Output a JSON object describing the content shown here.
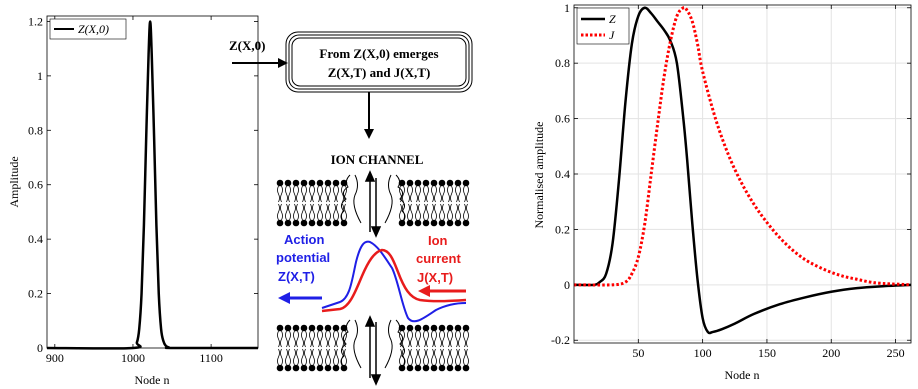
{
  "chart_data": [
    {
      "type": "line",
      "id": "left",
      "xlabel": "Node n",
      "ylabel": "Amplitude",
      "xlim": [
        890,
        1160
      ],
      "ylim": [
        0,
        1.22
      ],
      "xticks": [
        "900",
        "1000",
        "1100"
      ],
      "xtick_values": [
        900,
        1000,
        1100
      ],
      "yticks": [
        "0",
        "0.2",
        "0.4",
        "0.6",
        "0.8",
        "1",
        "1.2"
      ],
      "ytick_values": [
        0,
        0.2,
        0.4,
        0.6,
        0.8,
        1.0,
        1.2
      ],
      "grid": false,
      "legend_position": "top-left",
      "series": [
        {
          "name": "Z(X,0)",
          "color": "#000000",
          "style": "solid",
          "x": [
            890,
            1000,
            1005,
            1008,
            1011,
            1014,
            1017,
            1020,
            1022,
            1024,
            1027,
            1030,
            1033,
            1036,
            1039,
            1042,
            1046,
            1052,
            1160
          ],
          "y": [
            0,
            0,
            0.02,
            0.07,
            0.2,
            0.45,
            0.78,
            1.08,
            1.2,
            1.08,
            0.78,
            0.45,
            0.2,
            0.07,
            0.025,
            0.008,
            0.002,
            0,
            0
          ]
        }
      ]
    },
    {
      "type": "line",
      "id": "right",
      "xlabel": "Node n",
      "ylabel": "Normalised amplitude",
      "xlim": [
        0,
        262
      ],
      "ylim": [
        -0.21,
        1.01
      ],
      "xticks": [
        "50",
        "100",
        "150",
        "200",
        "250"
      ],
      "xtick_values": [
        50,
        100,
        150,
        200,
        250
      ],
      "yticks": [
        "-0.2",
        "0",
        "0.2",
        "0.4",
        "0.6",
        "0.8",
        "1"
      ],
      "ytick_values": [
        -0.2,
        0,
        0.2,
        0.4,
        0.6,
        0.8,
        1.0
      ],
      "grid": true,
      "legend_position": "top-left",
      "series": [
        {
          "name": "Z",
          "color": "#000000",
          "style": "solid",
          "x": [
            0,
            15,
            20,
            25,
            30,
            35,
            40,
            45,
            50,
            55,
            60,
            65,
            70,
            75,
            80,
            85,
            88,
            92,
            96,
            100,
            104,
            108,
            115,
            125,
            140,
            160,
            180,
            200,
            220,
            240,
            262
          ],
          "y": [
            0,
            0,
            0.01,
            0.04,
            0.15,
            0.38,
            0.66,
            0.87,
            0.97,
            1.0,
            0.98,
            0.95,
            0.92,
            0.88,
            0.8,
            0.6,
            0.45,
            0.22,
            0.02,
            -0.12,
            -0.17,
            -0.17,
            -0.16,
            -0.14,
            -0.105,
            -0.07,
            -0.045,
            -0.025,
            -0.012,
            -0.005,
            0
          ]
        },
        {
          "name": "J",
          "color": "#ff0000",
          "style": "dotted",
          "x": [
            0,
            30,
            40,
            45,
            50,
            55,
            60,
            65,
            70,
            75,
            80,
            85,
            88,
            92,
            96,
            100,
            110,
            120,
            130,
            140,
            150,
            160,
            170,
            180,
            190,
            200,
            210,
            220,
            230,
            240,
            262
          ],
          "y": [
            0,
            0,
            0.01,
            0.04,
            0.1,
            0.22,
            0.4,
            0.58,
            0.75,
            0.88,
            0.97,
            1.0,
            0.99,
            0.95,
            0.87,
            0.77,
            0.6,
            0.47,
            0.37,
            0.29,
            0.225,
            0.17,
            0.125,
            0.09,
            0.065,
            0.045,
            0.03,
            0.02,
            0.01,
            0.005,
            0
          ]
        }
      ]
    }
  ],
  "diagram": {
    "input_label": "Z(X,0)",
    "box_line1": "From Z(X,0) emerges",
    "box_line2": "Z(X,T) and J(X,T)",
    "channel_title": "ION CHANNEL",
    "action_line1": "Action",
    "action_line2": "potential",
    "action_line3": "Z(X,T)",
    "ion_line1": "Ion",
    "ion_line2": "current",
    "ion_line3": "J(X,T)",
    "blue_color": "#1f1fe6",
    "red_color": "#e81c1c"
  }
}
